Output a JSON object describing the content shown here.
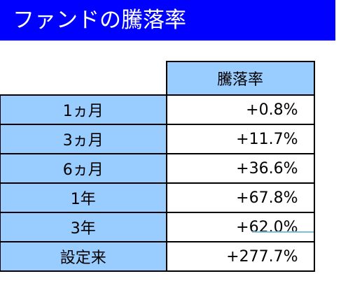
{
  "title": "ファンドの騰落率",
  "table": {
    "column_header": "騰落率",
    "rows": [
      {
        "period": "1ヵ月",
        "value": "+0.8%"
      },
      {
        "period": "3ヵ月",
        "value": "+11.7%"
      },
      {
        "period": "6ヵ月",
        "value": "+36.6%"
      },
      {
        "period": "1年",
        "value": "+67.8%"
      },
      {
        "period": "3年",
        "value": "+62.0%"
      },
      {
        "period": "設定来",
        "value": "+277.7%"
      }
    ]
  },
  "colors": {
    "title_background": "#0000ff",
    "title_text": "#ffffff",
    "header_fill": "#99ccff",
    "border": "#000000"
  }
}
